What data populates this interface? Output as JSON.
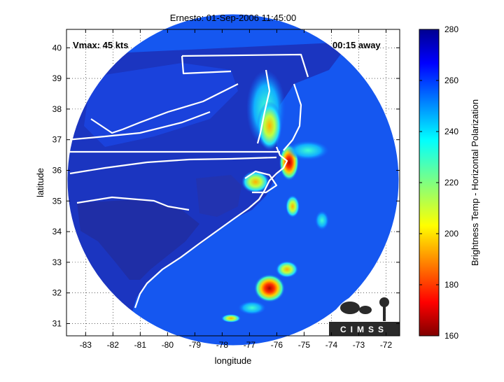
{
  "title": "Ernesto: 01-Sep-2006 11:45:00",
  "annotations": {
    "vmax": "Vmax: 45 kts",
    "time_away": "00:15 away"
  },
  "axes": {
    "xlabel": "longitude",
    "ylabel": "latitude",
    "xlim": [
      -83.7,
      -71.5
    ],
    "ylim": [
      30.6,
      40.6
    ],
    "xticks": [
      -83,
      -82,
      -81,
      -80,
      -79,
      -78,
      -77,
      -76,
      -75,
      -74,
      -73,
      -72
    ],
    "yticks": [
      31,
      32,
      33,
      34,
      35,
      36,
      37,
      38,
      39,
      40
    ],
    "grid": "dotted"
  },
  "colorbar": {
    "label": "Brightness Temp - Horizontal Polarization",
    "min": 160,
    "max": 280,
    "ticks": [
      160,
      180,
      200,
      220,
      240,
      260,
      280
    ],
    "colormap": "jet"
  },
  "logo": {
    "text": "CIMSS"
  },
  "colors": {
    "land_dark": "#1f2ea6",
    "ocean": "#1557f0",
    "warm_land": "#1a3fdc",
    "border": "#ffffff"
  }
}
